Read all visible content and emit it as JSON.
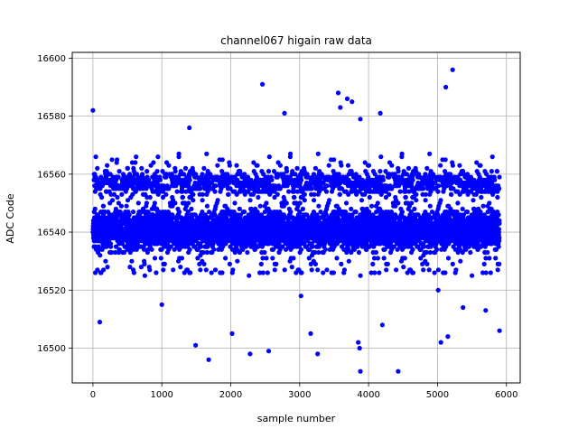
{
  "chart_data": {
    "type": "scatter",
    "title": "channel067 higain raw data",
    "xlabel": "sample number",
    "ylabel": "ADC Code",
    "xlim": [
      -300,
      6200
    ],
    "ylim": [
      16488,
      16602
    ],
    "xticks": [
      0,
      1000,
      2000,
      3000,
      4000,
      5000,
      6000
    ],
    "yticks": [
      16500,
      16520,
      16540,
      16560,
      16580,
      16600
    ],
    "grid": true,
    "marker_color": "#0000ff",
    "series": [
      {
        "n_points": 5900,
        "x_range": [
          0,
          5900
        ],
        "main_band": [
          16525,
          16567
        ],
        "dense_center": 16541,
        "outliers": [
          {
            "x": 0,
            "y": 16582
          },
          {
            "x": 100,
            "y": 16509
          },
          {
            "x": 1000,
            "y": 16515
          },
          {
            "x": 1400,
            "y": 16576
          },
          {
            "x": 1490,
            "y": 16501
          },
          {
            "x": 1680,
            "y": 16496
          },
          {
            "x": 2020,
            "y": 16505
          },
          {
            "x": 2280,
            "y": 16498
          },
          {
            "x": 2460,
            "y": 16591
          },
          {
            "x": 2550,
            "y": 16499
          },
          {
            "x": 2780,
            "y": 16581
          },
          {
            "x": 3020,
            "y": 16518
          },
          {
            "x": 3160,
            "y": 16505
          },
          {
            "x": 3260,
            "y": 16498
          },
          {
            "x": 3560,
            "y": 16588
          },
          {
            "x": 3590,
            "y": 16583
          },
          {
            "x": 3690,
            "y": 16586
          },
          {
            "x": 3760,
            "y": 16585
          },
          {
            "x": 3850,
            "y": 16502
          },
          {
            "x": 3870,
            "y": 16500
          },
          {
            "x": 3880,
            "y": 16492
          },
          {
            "x": 3880,
            "y": 16579
          },
          {
            "x": 4170,
            "y": 16581
          },
          {
            "x": 4200,
            "y": 16508
          },
          {
            "x": 4430,
            "y": 16492
          },
          {
            "x": 5010,
            "y": 16520
          },
          {
            "x": 5050,
            "y": 16502
          },
          {
            "x": 5120,
            "y": 16590
          },
          {
            "x": 5150,
            "y": 16504
          },
          {
            "x": 5220,
            "y": 16596
          },
          {
            "x": 5370,
            "y": 16514
          },
          {
            "x": 5700,
            "y": 16513
          },
          {
            "x": 5900,
            "y": 16506
          }
        ]
      }
    ]
  }
}
